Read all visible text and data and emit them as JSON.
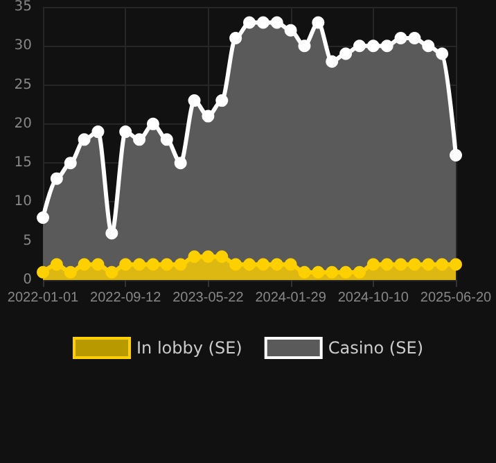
{
  "chart_data": {
    "type": "area",
    "categories": [
      "2022-01-01",
      null,
      null,
      null,
      null,
      null,
      "2022-09-12",
      null,
      null,
      null,
      null,
      null,
      "2023-05-22",
      null,
      null,
      null,
      null,
      null,
      "2024-01-29",
      null,
      null,
      null,
      null,
      null,
      "2024-10-10",
      null,
      null,
      null,
      null,
      null,
      "2025-06-20"
    ],
    "series": [
      {
        "name": "In lobby (SE)",
        "color": "#ffd000",
        "values": [
          1,
          2,
          1,
          2,
          2,
          1,
          2,
          2,
          2,
          2,
          2,
          3,
          3,
          3,
          2,
          2,
          2,
          2,
          2,
          1,
          1,
          1,
          1,
          1,
          2,
          2,
          2,
          2,
          2,
          2,
          2
        ]
      },
      {
        "name": "Casino (SE)",
        "color": "#ffffff",
        "values": [
          8,
          13,
          15,
          18,
          19,
          6,
          19,
          18,
          20,
          18,
          15,
          23,
          21,
          23,
          31,
          33,
          33,
          33,
          32,
          30,
          33,
          28,
          29,
          30,
          30,
          30,
          31,
          31,
          30,
          29,
          16
        ]
      }
    ],
    "ylim": [
      0,
      35
    ],
    "yticks": [
      0,
      5,
      10,
      15,
      20,
      25,
      30,
      35
    ],
    "grid": true,
    "legend": "bottom",
    "marker": "circle",
    "line_style": "solid"
  }
}
